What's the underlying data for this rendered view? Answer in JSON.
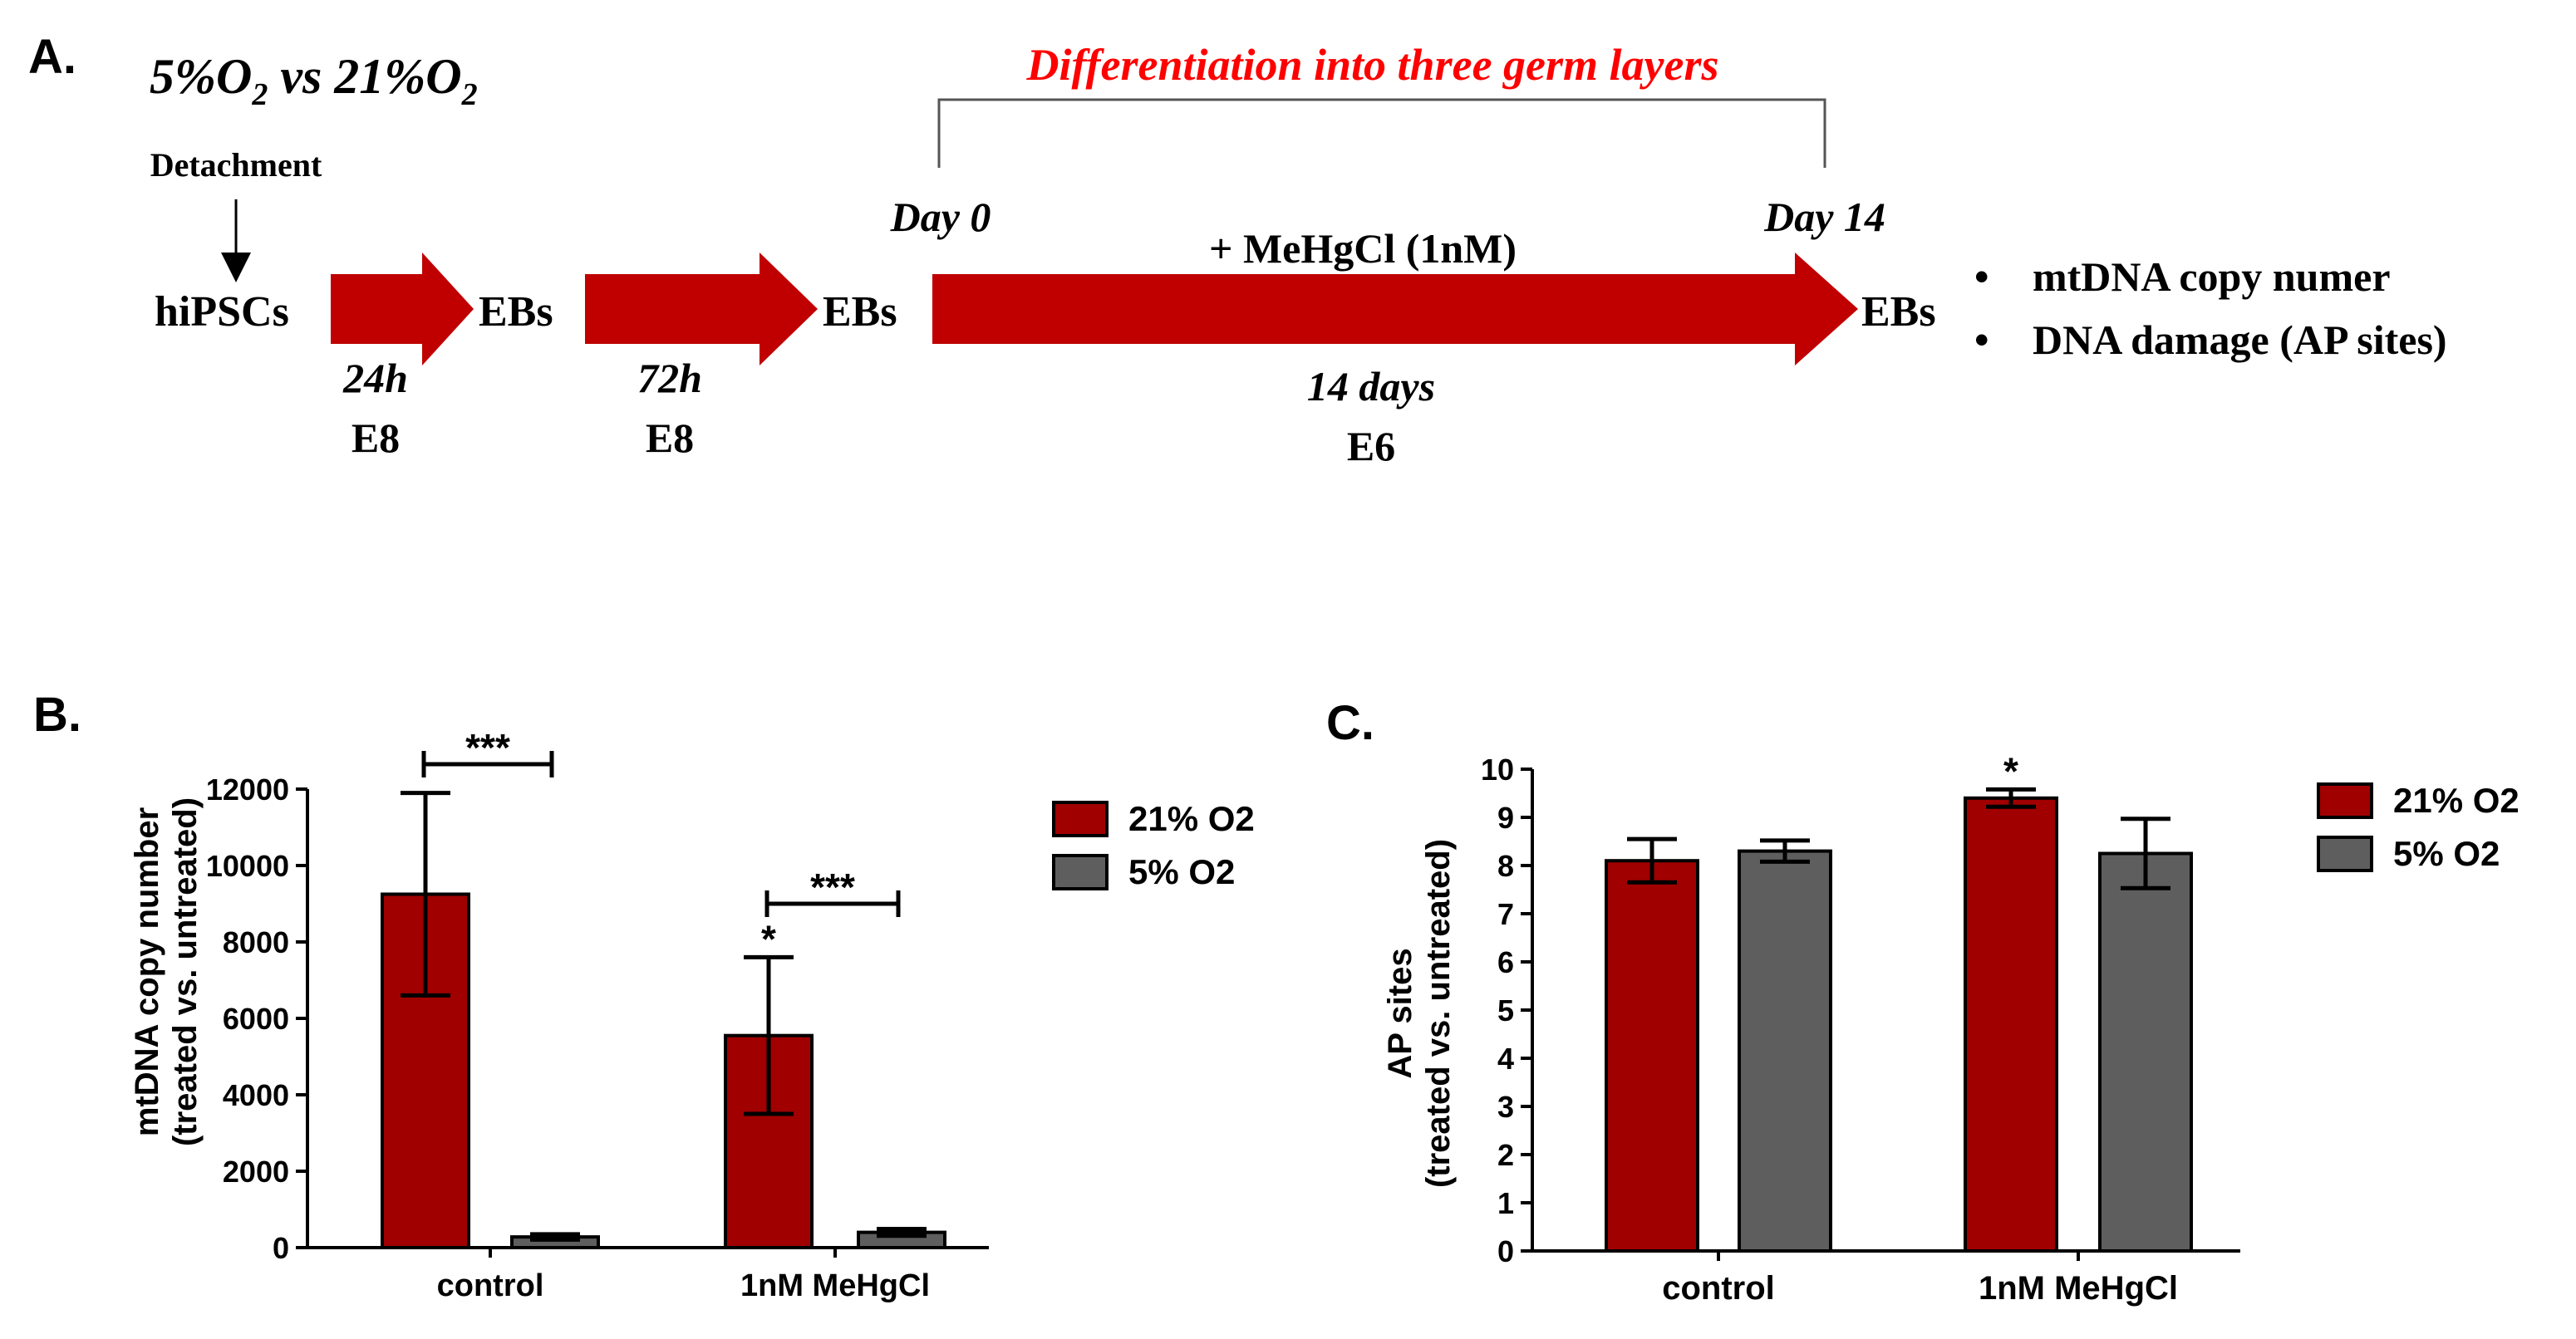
{
  "panel_a": {
    "label": "A.",
    "title_left": "5%O",
    "title_sub1": "2",
    "title_mid": " vs 21%O",
    "title_sub2": "2",
    "detachment": "Detachment",
    "hipscs": "hiPSCs",
    "ebs1": "EBs",
    "ebs2": "EBs",
    "ebs3": "EBs",
    "time1": "24h",
    "medium1": "E8",
    "time2": "72h",
    "medium2": "E8",
    "differentiation": "Differentiation into three germ layers",
    "day0": "Day 0",
    "day14": "Day 14",
    "treatment": "+ MeHgCl (1nM)",
    "time3": "14 days",
    "medium3": "E6",
    "bullet1": "mtDNA copy numer",
    "bullet2": "DNA damage (AP sites)",
    "bullet_char": "•"
  },
  "colors": {
    "red": "#a00000",
    "gray": "#5e5e5e",
    "diff_red": "#ff0000"
  },
  "chart_data": [
    {
      "panel_label": "B.",
      "type": "bar",
      "categories": [
        "control",
        "1nM MeHgCl"
      ],
      "ylabel_line1": "mtDNA copy number",
      "ylabel_line2": "(treated vs. untreated)",
      "ylim": [
        0,
        12000
      ],
      "yticks": [
        0,
        2000,
        4000,
        6000,
        8000,
        10000,
        12000
      ],
      "series": [
        {
          "name": "21% O2",
          "color": "#a00000",
          "values": [
            9250,
            5550
          ],
          "errors": [
            2650,
            2050
          ]
        },
        {
          "name": "5% O2",
          "color": "#5e5e5e",
          "values": [
            280,
            400
          ],
          "errors": [
            70,
            90
          ]
        }
      ],
      "stars": [
        {
          "category": 1,
          "series": 0,
          "text": "*"
        }
      ],
      "brackets": [
        {
          "category": 0,
          "text": "***"
        },
        {
          "category": 1,
          "text": "***"
        }
      ],
      "legend_position": "right"
    },
    {
      "panel_label": "C.",
      "type": "bar",
      "categories": [
        "control",
        "1nM MeHgCl"
      ],
      "ylabel_line1": "AP sites",
      "ylabel_line2": "(treated vs. untreated)",
      "ylim": [
        0,
        10
      ],
      "yticks": [
        0,
        1,
        2,
        3,
        4,
        5,
        6,
        7,
        8,
        9,
        10
      ],
      "series": [
        {
          "name": "21% O2",
          "color": "#a00000",
          "values": [
            8.1,
            9.4
          ],
          "errors": [
            0.45,
            0.18
          ]
        },
        {
          "name": "5% O2",
          "color": "#5e5e5e",
          "values": [
            8.3,
            8.25
          ],
          "errors": [
            0.22,
            0.72
          ]
        }
      ],
      "stars": [
        {
          "category": 1,
          "series": 0,
          "text": "*"
        }
      ],
      "brackets": [],
      "legend_position": "right"
    }
  ]
}
